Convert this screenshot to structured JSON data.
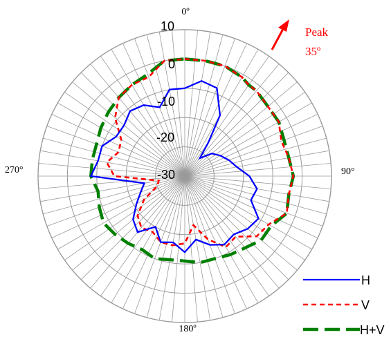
{
  "chart_data": {
    "type": "polar-line",
    "title": "",
    "radial_axis": {
      "range": [
        -40,
        10
      ],
      "ticks": [
        "10",
        "0",
        "-10",
        "-20",
        "-30"
      ]
    },
    "angle_labels": {
      "top": "0º",
      "right": "90°",
      "bottom": "180º",
      "left": "270°"
    },
    "annotation": {
      "line1": "Peak",
      "line2": "35º",
      "color": "#ff0000"
    },
    "colors": {
      "H": "#0000ff",
      "V": "#ff0000",
      "HV": "#008000",
      "grid": "#9a9a9a"
    },
    "legend_position": "bottom-right",
    "angles_deg": [
      0,
      10,
      20,
      30,
      35,
      40,
      50,
      60,
      70,
      80,
      90,
      100,
      110,
      120,
      130,
      140,
      150,
      160,
      170,
      180,
      190,
      200,
      210,
      220,
      230,
      240,
      250,
      260,
      270,
      280,
      290,
      300,
      310,
      320,
      330,
      340,
      350
    ],
    "series": [
      {
        "name": "H",
        "values": [
          -10,
          -7,
          -8,
          -16,
          -26,
          -32,
          -28,
          -26,
          -24,
          -22,
          -18,
          -15,
          -16,
          -11,
          -12,
          -14,
          -13,
          -15,
          -18,
          -14,
          -17,
          -16,
          -20,
          -15,
          -17,
          -21,
          -24,
          -26,
          -8,
          -10,
          -10,
          -13,
          -13,
          -11,
          -12,
          -15,
          -10
        ]
      },
      {
        "name": "V",
        "values": [
          0,
          0,
          0,
          -1,
          -2,
          -2,
          -3,
          -3,
          -5,
          -4,
          -3,
          -4,
          -3,
          -7,
          -8,
          -13,
          -12,
          -17,
          -23,
          -17,
          -16,
          -16,
          -18,
          -17,
          -19,
          -24,
          -30,
          -31,
          -16,
          -13,
          -16,
          -15,
          -9,
          -5,
          -4,
          -4,
          0
        ]
      },
      {
        "name": "H+V",
        "values": [
          0,
          0,
          0,
          -1,
          -2,
          -2,
          -3,
          -3,
          -4,
          -4,
          -3,
          -4,
          -3,
          -6,
          -6,
          -8,
          -9,
          -10,
          -10,
          -11,
          -11,
          -10,
          -11,
          -10,
          -9,
          -8,
          -9,
          -10,
          -8,
          -8,
          -8,
          -7,
          -6,
          -5,
          -4,
          -3,
          0
        ]
      }
    ]
  }
}
